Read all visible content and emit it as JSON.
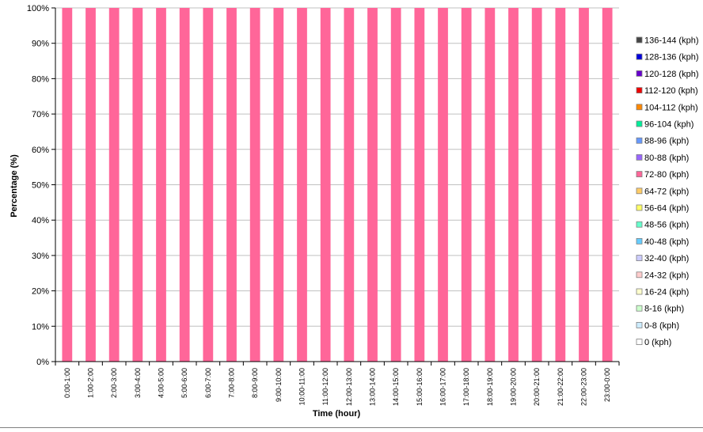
{
  "chart_data": {
    "type": "bar",
    "stacked": true,
    "xlabel": "Time (hour)",
    "ylabel": "Percentage (%)",
    "ylim": [
      0,
      100
    ],
    "yticks": [
      "0%",
      "10%",
      "20%",
      "30%",
      "40%",
      "50%",
      "60%",
      "70%",
      "80%",
      "90%",
      "100%"
    ],
    "categories": [
      "0:00-1:00",
      "1:00-2:00",
      "2:00-3:00",
      "3:00-4:00",
      "4:00-5:00",
      "5:00-6:00",
      "6:00-7:00",
      "7:00-8:00",
      "8:00-9:00",
      "9:00-10:00",
      "10:00-11:00",
      "11:00-12:00",
      "12:00-13:00",
      "13:00-14:00",
      "14:00-15:00",
      "15:00-16:00",
      "16:00-17:00",
      "17:00-18:00",
      "18:00-19:00",
      "19:00-20:00",
      "20:00-21:00",
      "21:00-22:00",
      "22:00-23:00",
      "23:00-0:00"
    ],
    "legend_position": "right",
    "grid": true,
    "series": [
      {
        "name": "0 (kph)",
        "color": "#ffffff",
        "values": [
          0,
          0,
          0,
          0,
          0,
          0,
          0,
          0,
          0,
          0,
          0,
          0,
          0,
          0,
          0,
          0,
          0,
          0,
          0,
          0,
          0,
          0,
          0,
          0
        ]
      },
      {
        "name": "0-8 (kph)",
        "color": "#ccecff",
        "values": [
          0,
          0,
          0,
          0,
          0,
          0,
          0,
          0,
          0,
          0,
          0,
          0,
          0,
          0,
          0,
          0,
          0,
          0,
          0,
          0,
          0,
          0,
          0,
          0
        ]
      },
      {
        "name": "8-16 (kph)",
        "color": "#ccffcc",
        "values": [
          0,
          0,
          0,
          0,
          0,
          0,
          0,
          0,
          0,
          0,
          0,
          0,
          0,
          0,
          0,
          0,
          0,
          0,
          0,
          0,
          0,
          0,
          0,
          0
        ]
      },
      {
        "name": "16-24 (kph)",
        "color": "#ffffcc",
        "values": [
          0,
          0,
          0,
          0,
          0,
          0,
          0,
          0,
          0,
          0,
          0,
          0,
          0,
          0,
          0,
          0,
          0,
          0,
          0,
          0,
          0,
          0,
          0,
          0
        ]
      },
      {
        "name": "24-32 (kph)",
        "color": "#ffcccc",
        "values": [
          0,
          0,
          0,
          0,
          0,
          0,
          0,
          0,
          0,
          0,
          0,
          0,
          0,
          0,
          0,
          0,
          0,
          0,
          0,
          0,
          0,
          0,
          0,
          0
        ]
      },
      {
        "name": "32-40 (kph)",
        "color": "#ccccff",
        "values": [
          0,
          0,
          0,
          0,
          0,
          0,
          0,
          0,
          0,
          0,
          0,
          0,
          0,
          0,
          0,
          0,
          0,
          0,
          0,
          0,
          0,
          0,
          0,
          0
        ]
      },
      {
        "name": "40-48 (kph)",
        "color": "#66ccff",
        "values": [
          0,
          0,
          0,
          0,
          0,
          0,
          0,
          0,
          0,
          0,
          0,
          0,
          0,
          0,
          0,
          0,
          0,
          0,
          0,
          0,
          0,
          0,
          0,
          0
        ]
      },
      {
        "name": "48-56 (kph)",
        "color": "#66ffcc",
        "values": [
          0,
          0,
          0,
          0,
          0,
          0,
          0,
          0,
          0,
          0,
          0,
          0,
          0,
          0,
          0,
          0,
          0,
          0,
          0,
          0,
          0,
          0,
          0,
          0
        ]
      },
      {
        "name": "56-64 (kph)",
        "color": "#ffff66",
        "values": [
          0,
          0,
          0,
          0,
          0,
          0,
          0,
          0,
          0,
          0,
          0,
          0,
          0,
          0,
          0,
          0,
          0,
          0,
          0,
          0,
          0,
          0,
          0,
          0
        ]
      },
      {
        "name": "64-72 (kph)",
        "color": "#ffcc66",
        "values": [
          0,
          0,
          0,
          0,
          0,
          0,
          0,
          0,
          0,
          0,
          0,
          0,
          0,
          0,
          0,
          0,
          0,
          0,
          0,
          0,
          0,
          0,
          0,
          0
        ]
      },
      {
        "name": "72-80 (kph)",
        "color": "#ff6699",
        "values": [
          100,
          100,
          100,
          100,
          100,
          100,
          100,
          100,
          100,
          100,
          100,
          100,
          100,
          100,
          100,
          100,
          100,
          100,
          100,
          100,
          100,
          100,
          100,
          100
        ]
      },
      {
        "name": "80-88 (kph)",
        "color": "#9966ff",
        "values": [
          0,
          0,
          0,
          0,
          0,
          0,
          0,
          0,
          0,
          0,
          0,
          0,
          0,
          0,
          0,
          0,
          0,
          0,
          0,
          0,
          0,
          0,
          0,
          0
        ]
      },
      {
        "name": "88-96 (kph)",
        "color": "#6699ff",
        "values": [
          0,
          0,
          0,
          0,
          0,
          0,
          0,
          0,
          0,
          0,
          0,
          0,
          0,
          0,
          0,
          0,
          0,
          0,
          0,
          0,
          0,
          0,
          0,
          0
        ]
      },
      {
        "name": "96-104 (kph)",
        "color": "#00ee99",
        "values": [
          0,
          0,
          0,
          0,
          0,
          0,
          0,
          0,
          0,
          0,
          0,
          0,
          0,
          0,
          0,
          0,
          0,
          0,
          0,
          0,
          0,
          0,
          0,
          0
        ]
      },
      {
        "name": "104-112 (kph)",
        "color": "#ff8800",
        "values": [
          0,
          0,
          0,
          0,
          0,
          0,
          0,
          0,
          0,
          0,
          0,
          0,
          0,
          0,
          0,
          0,
          0,
          0,
          0,
          0,
          0,
          0,
          0,
          0
        ]
      },
      {
        "name": "112-120 (kph)",
        "color": "#ee0000",
        "values": [
          0,
          0,
          0,
          0,
          0,
          0,
          0,
          0,
          0,
          0,
          0,
          0,
          0,
          0,
          0,
          0,
          0,
          0,
          0,
          0,
          0,
          0,
          0,
          0
        ]
      },
      {
        "name": "120-128 (kph)",
        "color": "#6600cc",
        "values": [
          0,
          0,
          0,
          0,
          0,
          0,
          0,
          0,
          0,
          0,
          0,
          0,
          0,
          0,
          0,
          0,
          0,
          0,
          0,
          0,
          0,
          0,
          0,
          0
        ]
      },
      {
        "name": "128-136 (kph)",
        "color": "#0000dd",
        "values": [
          0,
          0,
          0,
          0,
          0,
          0,
          0,
          0,
          0,
          0,
          0,
          0,
          0,
          0,
          0,
          0,
          0,
          0,
          0,
          0,
          0,
          0,
          0,
          0
        ]
      },
      {
        "name": "136-144 (kph)",
        "color": "#444444",
        "values": [
          0,
          0,
          0,
          0,
          0,
          0,
          0,
          0,
          0,
          0,
          0,
          0,
          0,
          0,
          0,
          0,
          0,
          0,
          0,
          0,
          0,
          0,
          0,
          0
        ]
      }
    ]
  }
}
